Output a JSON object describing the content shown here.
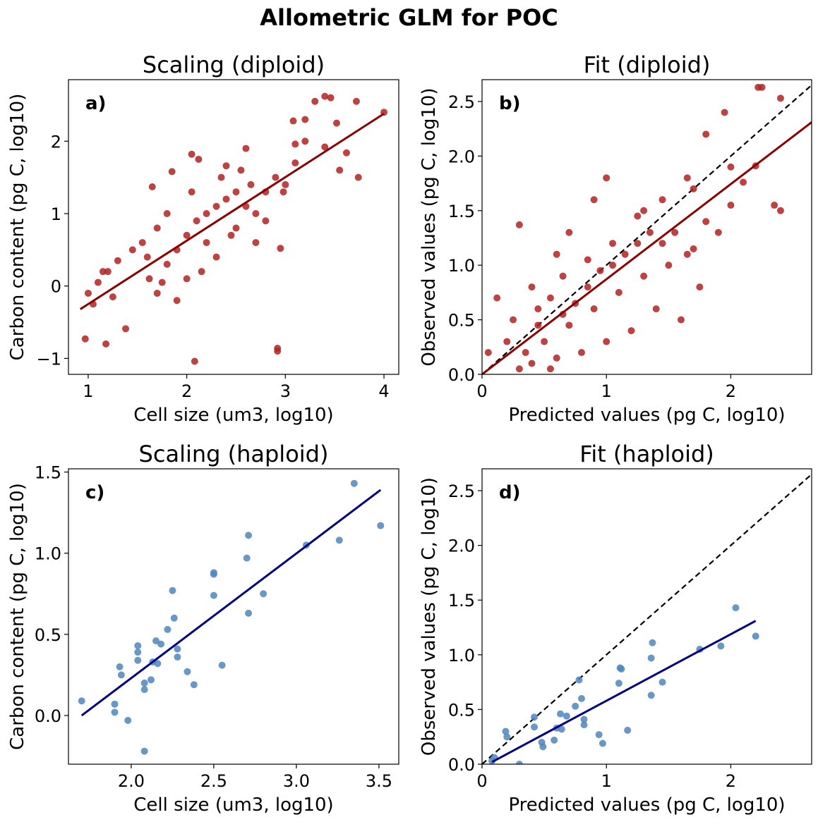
{
  "suptitle": "Allometric GLM for POC",
  "colors": {
    "diploid_points": "#b22222",
    "diploid_line": "#8b0000",
    "haploid_points": "#4f86bd",
    "haploid_line": "#000080",
    "identity_line": "#000000"
  },
  "chart_data": [
    {
      "id": "a",
      "type": "scatter",
      "title": "Scaling (diploid)",
      "panel_label": "a)",
      "xlabel": "Cell size (um3, log10)",
      "ylabel": "Carbon content (pg C, log10)",
      "xlim": [
        0.8,
        4.15
      ],
      "ylim": [
        -1.22,
        2.85
      ],
      "xticks": [
        1,
        2,
        3,
        4
      ],
      "yticks": [
        -1,
        0,
        1,
        2
      ],
      "xtick_labels": [
        "1",
        "2",
        "3",
        "4"
      ],
      "ytick_labels": [
        "−1",
        "0",
        "1",
        "2"
      ],
      "point_color": "#b22222",
      "points": [
        [
          0.97,
          -0.73
        ],
        [
          1.18,
          -0.8
        ],
        [
          2.08,
          -1.04
        ],
        [
          2.92,
          -0.86
        ],
        [
          2.92,
          -0.9
        ],
        [
          1.38,
          -0.59
        ],
        [
          3.4,
          2.62
        ],
        [
          3.46,
          2.6
        ],
        [
          3.72,
          2.55
        ],
        [
          4.0,
          2.4
        ],
        [
          3.55,
          1.6
        ],
        [
          3.74,
          1.5
        ],
        [
          3.62,
          1.84
        ],
        [
          3.52,
          2.25
        ],
        [
          3.4,
          1.92
        ],
        [
          3.2,
          2.3
        ],
        [
          3.2,
          2.0
        ],
        [
          3.3,
          2.55
        ],
        [
          3.08,
          2.28
        ],
        [
          3.1,
          1.96
        ],
        [
          1.65,
          1.37
        ],
        [
          1.85,
          1.58
        ],
        [
          2.05,
          1.82
        ],
        [
          2.12,
          1.75
        ],
        [
          2.6,
          1.9
        ],
        [
          2.4,
          1.66
        ],
        [
          2.95,
          0.52
        ],
        [
          2.98,
          1.3
        ],
        [
          1.0,
          -0.1
        ],
        [
          1.05,
          -0.25
        ],
        [
          1.1,
          0.05
        ],
        [
          1.2,
          0.2
        ],
        [
          1.3,
          0.35
        ],
        [
          1.45,
          0.5
        ],
        [
          1.55,
          0.6
        ],
        [
          1.62,
          0.1
        ],
        [
          1.7,
          -0.1
        ],
        [
          1.75,
          0.05
        ],
        [
          1.8,
          0.3
        ],
        [
          1.9,
          0.5
        ],
        [
          2.0,
          0.7
        ],
        [
          2.1,
          0.9
        ],
        [
          2.2,
          1.0
        ],
        [
          2.3,
          1.1
        ],
        [
          2.4,
          1.2
        ],
        [
          2.5,
          1.3
        ],
        [
          2.6,
          1.1
        ],
        [
          2.7,
          1.0
        ],
        [
          2.8,
          1.3
        ],
        [
          2.9,
          1.5
        ],
        [
          1.9,
          -0.2
        ],
        [
          2.0,
          0.1
        ],
        [
          2.2,
          0.6
        ],
        [
          2.3,
          0.4
        ],
        [
          2.5,
          0.8
        ],
        [
          2.7,
          0.6
        ],
        [
          2.8,
          0.9
        ],
        [
          1.7,
          0.8
        ],
        [
          1.8,
          1.0
        ],
        [
          2.05,
          1.3
        ],
        [
          2.35,
          1.5
        ],
        [
          2.55,
          1.6
        ],
        [
          1.15,
          0.2
        ],
        [
          1.25,
          -0.15
        ],
        [
          1.6,
          0.4
        ],
        [
          2.15,
          0.2
        ],
        [
          2.45,
          0.7
        ],
        [
          2.65,
          1.4
        ],
        [
          3.0,
          1.4
        ],
        [
          3.1,
          1.7
        ]
      ],
      "fit_line": [
        [
          0.92,
          -0.32
        ],
        [
          4.0,
          2.38
        ]
      ],
      "fit_color": "#8b0000",
      "identity_line": false
    },
    {
      "id": "b",
      "type": "scatter",
      "title": "Fit (diploid)",
      "panel_label": "b)",
      "xlabel": "Predicted values (pg C, log10)",
      "ylabel": "Observed values (pg C, log10)",
      "xlim": [
        0,
        2.65
      ],
      "ylim": [
        0,
        2.7
      ],
      "xticks": [
        0,
        1,
        2
      ],
      "yticks": [
        0.0,
        0.5,
        1.0,
        1.5,
        2.0,
        2.5
      ],
      "xtick_labels": [
        "0",
        "1",
        "2"
      ],
      "ytick_labels": [
        "0.0",
        "0.5",
        "1.0",
        "1.5",
        "2.0",
        "2.5"
      ],
      "point_color": "#b22222",
      "points": [
        [
          2.22,
          2.63
        ],
        [
          2.25,
          2.63
        ],
        [
          2.4,
          2.53
        ],
        [
          2.2,
          1.91
        ],
        [
          2.35,
          1.55
        ],
        [
          2.4,
          1.5
        ],
        [
          2.1,
          1.76
        ],
        [
          2.0,
          1.55
        ],
        [
          1.95,
          2.4
        ],
        [
          1.8,
          2.2
        ],
        [
          1.7,
          1.7
        ],
        [
          1.3,
          1.5
        ],
        [
          1.0,
          1.8
        ],
        [
          0.9,
          1.6
        ],
        [
          0.7,
          1.3
        ],
        [
          0.6,
          1.1
        ],
        [
          0.3,
          1.37
        ],
        [
          0.12,
          0.7
        ],
        [
          0.25,
          0.5
        ],
        [
          0.05,
          0.2
        ],
        [
          0.45,
          0.45
        ],
        [
          0.55,
          0.7
        ],
        [
          0.65,
          0.55
        ],
        [
          0.75,
          0.65
        ],
        [
          0.85,
          0.8
        ],
        [
          0.95,
          0.95
        ],
        [
          1.05,
          1.0
        ],
        [
          1.15,
          1.1
        ],
        [
          1.25,
          1.2
        ],
        [
          1.35,
          1.3
        ],
        [
          1.45,
          1.2
        ],
        [
          1.55,
          1.3
        ],
        [
          1.65,
          1.1
        ],
        [
          1.75,
          0.8
        ],
        [
          1.6,
          0.5
        ],
        [
          1.4,
          0.6
        ],
        [
          1.2,
          0.4
        ],
        [
          1.0,
          0.3
        ],
        [
          0.8,
          0.2
        ],
        [
          0.6,
          0.15
        ],
        [
          0.4,
          0.1
        ],
        [
          0.3,
          0.05
        ],
        [
          0.5,
          0.3
        ],
        [
          0.7,
          0.45
        ],
        [
          0.9,
          0.6
        ],
        [
          1.1,
          0.75
        ],
        [
          1.3,
          0.9
        ],
        [
          1.5,
          1.0
        ],
        [
          1.7,
          1.15
        ],
        [
          1.9,
          1.3
        ],
        [
          0.35,
          0.2
        ],
        [
          0.55,
          0.05
        ],
        [
          0.45,
          0.6
        ],
        [
          0.65,
          0.9
        ],
        [
          0.85,
          1.05
        ],
        [
          1.05,
          1.2
        ],
        [
          1.25,
          1.45
        ],
        [
          1.45,
          1.6
        ],
        [
          1.65,
          1.8
        ],
        [
          0.4,
          0.8
        ],
        [
          0.2,
          0.3
        ],
        [
          1.8,
          1.4
        ],
        [
          2.0,
          1.9
        ]
      ],
      "fit_line": [
        [
          0.0,
          0.0
        ],
        [
          2.65,
          2.31
        ]
      ],
      "fit_color": "#8b0000",
      "identity_line": true
    },
    {
      "id": "c",
      "type": "scatter",
      "title": "Scaling (haploid)",
      "panel_label": "c)",
      "xlabel": "Cell size (um3, log10)",
      "ylabel": "Carbon content (pg C, log10)",
      "xlim": [
        1.62,
        3.62
      ],
      "ylim": [
        -0.3,
        1.52
      ],
      "xticks": [
        2.0,
        2.5,
        3.0,
        3.5
      ],
      "yticks": [
        0.0,
        0.5,
        1.0,
        1.5
      ],
      "xtick_labels": [
        "2.0",
        "2.5",
        "3.0",
        "3.5"
      ],
      "ytick_labels": [
        "0.0",
        "0.5",
        "1.0",
        "1.5"
      ],
      "point_color": "#4f86bd",
      "points": [
        [
          1.7,
          0.09
        ],
        [
          1.9,
          0.07
        ],
        [
          1.9,
          0.02
        ],
        [
          1.93,
          0.3
        ],
        [
          1.94,
          0.25
        ],
        [
          1.98,
          -0.03
        ],
        [
          2.04,
          0.34
        ],
        [
          2.04,
          0.43
        ],
        [
          2.04,
          0.39
        ],
        [
          2.08,
          0.2
        ],
        [
          2.08,
          0.16
        ],
        [
          2.08,
          -0.22
        ],
        [
          2.12,
          0.22
        ],
        [
          2.13,
          0.33
        ],
        [
          2.15,
          0.46
        ],
        [
          2.16,
          0.32
        ],
        [
          2.18,
          0.44
        ],
        [
          2.22,
          0.53
        ],
        [
          2.25,
          0.77
        ],
        [
          2.26,
          0.6
        ],
        [
          2.28,
          0.41
        ],
        [
          2.28,
          0.36
        ],
        [
          2.34,
          0.27
        ],
        [
          2.38,
          0.19
        ],
        [
          2.5,
          0.88
        ],
        [
          2.5,
          0.87
        ],
        [
          2.5,
          0.74
        ],
        [
          2.55,
          0.31
        ],
        [
          2.7,
          0.97
        ],
        [
          2.71,
          1.11
        ],
        [
          2.71,
          0.63
        ],
        [
          2.8,
          0.75
        ],
        [
          3.06,
          1.05
        ],
        [
          3.26,
          1.08
        ],
        [
          3.35,
          1.43
        ],
        [
          3.51,
          1.17
        ]
      ],
      "fit_line": [
        [
          1.7,
          0.0
        ],
        [
          3.51,
          1.39
        ]
      ],
      "fit_color": "#000080",
      "identity_line": false
    },
    {
      "id": "d",
      "type": "scatter",
      "title": "Fit (haploid)",
      "panel_label": "d)",
      "xlabel": "Predicted values (pg C, log10)",
      "ylabel": "Observed values (pg C, log10)",
      "xlim": [
        0,
        2.65
      ],
      "ylim": [
        0,
        2.7
      ],
      "xticks": [
        0,
        1,
        2
      ],
      "yticks": [
        0.0,
        0.5,
        1.0,
        1.5,
        2.0,
        2.5
      ],
      "xtick_labels": [
        "0",
        "1",
        "2"
      ],
      "ytick_labels": [
        "0.0",
        "0.5",
        "1.0",
        "1.5",
        "2.0",
        "2.5"
      ],
      "point_color": "#4f86bd",
      "points": [
        [
          0.08,
          0.03
        ],
        [
          0.1,
          0.06
        ],
        [
          0.19,
          0.3
        ],
        [
          0.2,
          0.25
        ],
        [
          0.3,
          0.0
        ],
        [
          0.42,
          0.43
        ],
        [
          0.42,
          0.34
        ],
        [
          0.48,
          0.2
        ],
        [
          0.49,
          0.16
        ],
        [
          0.58,
          0.22
        ],
        [
          0.6,
          0.33
        ],
        [
          0.63,
          0.46
        ],
        [
          0.64,
          0.32
        ],
        [
          0.68,
          0.44
        ],
        [
          0.75,
          0.53
        ],
        [
          0.78,
          0.77
        ],
        [
          0.8,
          0.6
        ],
        [
          0.82,
          0.41
        ],
        [
          0.82,
          0.36
        ],
        [
          0.94,
          0.27
        ],
        [
          0.97,
          0.19
        ],
        [
          1.11,
          0.88
        ],
        [
          1.12,
          0.87
        ],
        [
          1.1,
          0.74
        ],
        [
          1.17,
          0.31
        ],
        [
          1.36,
          0.97
        ],
        [
          1.37,
          1.11
        ],
        [
          1.36,
          0.63
        ],
        [
          1.45,
          0.75
        ],
        [
          1.75,
          1.05
        ],
        [
          1.92,
          1.08
        ],
        [
          2.04,
          1.43
        ],
        [
          2.2,
          1.17
        ]
      ],
      "fit_line": [
        [
          0.08,
          0.02
        ],
        [
          2.2,
          1.31
        ]
      ],
      "fit_color": "#000080",
      "identity_line": true
    }
  ]
}
